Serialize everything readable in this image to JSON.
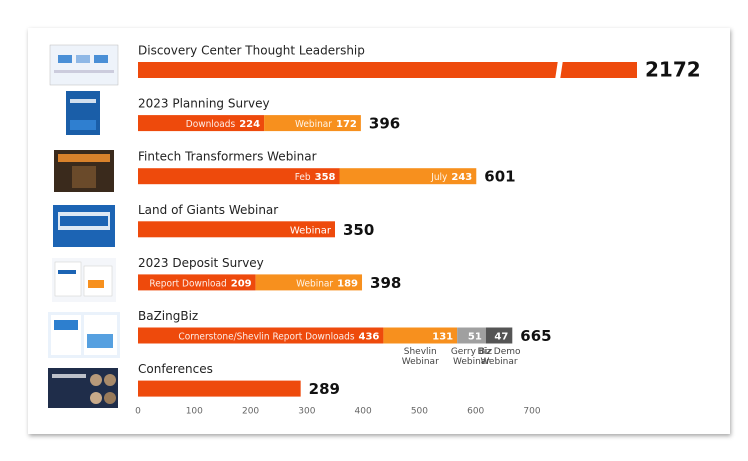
{
  "chart_data": {
    "type": "stacked-bar",
    "xlim": [
      0,
      700
    ],
    "xticks": [
      0,
      100,
      200,
      300,
      400,
      500,
      600,
      700
    ],
    "rows": [
      {
        "label": "Discovery Center Thought Leadership",
        "total": 2172,
        "segments": [
          {
            "value": 2172,
            "color": "#ee4a0c"
          }
        ]
      },
      {
        "label": "2023 Planning Survey",
        "total": 396,
        "segments": [
          {
            "name": "Downloads",
            "value": 224,
            "color": "#ee4a0c"
          },
          {
            "name": "Webinar",
            "value": 172,
            "color": "#f7901e"
          }
        ]
      },
      {
        "label": "Fintech Transformers Webinar",
        "total": 601,
        "segments": [
          {
            "name": "Feb",
            "value": 358,
            "color": "#ee4a0c"
          },
          {
            "name": "July",
            "value": 243,
            "color": "#f7901e"
          }
        ]
      },
      {
        "label": "Land of Giants Webinar",
        "total": 350,
        "segments": [
          {
            "name": "Webinar",
            "value": 350,
            "color": "#ee4a0c"
          }
        ]
      },
      {
        "label": "2023 Deposit Survey",
        "total": 398,
        "segments": [
          {
            "name": "Report Download",
            "value": 209,
            "color": "#ee4a0c"
          },
          {
            "name": "Webinar",
            "value": 189,
            "color": "#f7901e"
          }
        ]
      },
      {
        "label": "BaZingBiz",
        "total": 665,
        "segments": [
          {
            "name": "Cornerstone/Shevlin Report Downloads",
            "value": 436,
            "color": "#ee4a0c"
          },
          {
            "name": "Shevlin Webinar",
            "value": 131,
            "color": "#f7901e",
            "name_position": "below"
          },
          {
            "name": "Gerry Biz Webinar",
            "value": 51,
            "color": "#a0a0a0",
            "name_position": "below"
          },
          {
            "name": "Biz Demo Webinar",
            "value": 47,
            "color": "#555555",
            "name_position": "below"
          }
        ]
      },
      {
        "label": "Conferences",
        "total": 289,
        "segments": [
          {
            "value": 289,
            "color": "#ee4a0c"
          }
        ]
      }
    ]
  }
}
